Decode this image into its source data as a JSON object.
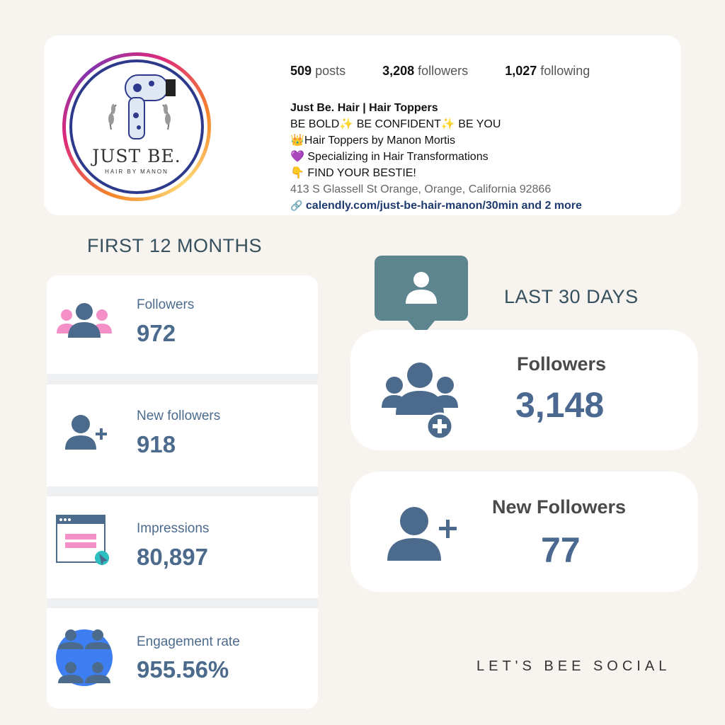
{
  "profile": {
    "logo_text": "JUST BE.",
    "logo_sub": "HAIR BY MANON",
    "stats": [
      {
        "value": "509",
        "label": "posts"
      },
      {
        "value": "3,208",
        "label": "followers"
      },
      {
        "value": "1,027",
        "label": "following"
      }
    ],
    "bio": {
      "name": "Just Be. Hair | Hair Toppers",
      "line1": "BE BOLD✨ BE CONFIDENT✨ BE YOU",
      "line2": "👑Hair Toppers by Manon Mortis",
      "line3": "💜 Specializing in Hair Transformations",
      "line4": "👇 FIND YOUR BESTIE!",
      "address": "413 S Glassell St Orange, Orange, California 92866",
      "link": "calendly.com/just-be-hair-manon/30min and 2 more"
    }
  },
  "first_months": {
    "title": "FIRST 12 MONTHS",
    "items": [
      {
        "label": "Followers",
        "value": "972"
      },
      {
        "label": "New followers",
        "value": "918"
      },
      {
        "label": "Impressions",
        "value": "80,897"
      },
      {
        "label": "Engagement rate",
        "value": "955.56%"
      }
    ]
  },
  "last_days": {
    "title": "LAST 30 DAYS",
    "followers_label": "Followers",
    "followers_value": "3,148",
    "new_label": "New Followers",
    "new_value": "77"
  },
  "footer": "LET'S BEE SOCIAL",
  "colors": {
    "accent": "#4a6890",
    "teal": "#5d8590",
    "pink": "#f48fc8",
    "blue": "#3d7ff2"
  }
}
